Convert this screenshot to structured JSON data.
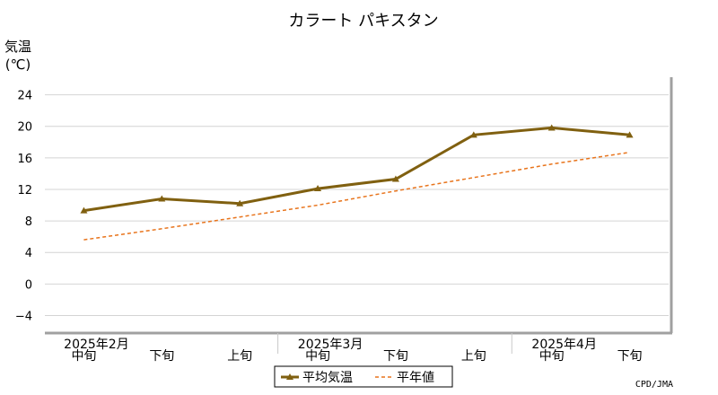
{
  "chart_data": {
    "type": "line",
    "title": "カラート パキスタン",
    "ylabel_line1": "気温",
    "ylabel_line2": "(℃)",
    "ylim": [
      -6,
      26
    ],
    "yticks": [
      -4,
      0,
      4,
      8,
      12,
      16,
      20,
      24
    ],
    "grid": true,
    "categories": [
      "中旬",
      "下旬",
      "上旬",
      "中旬",
      "下旬",
      "上旬",
      "中旬",
      "下旬"
    ],
    "month_labels": [
      {
        "label": "2025年2月",
        "at": 0
      },
      {
        "label": "2025年3月",
        "at": 3
      },
      {
        "label": "2025年4月",
        "at": 6
      }
    ],
    "series": [
      {
        "name": "平均気温",
        "style": "solid-triangle",
        "color": "#806010",
        "values": [
          9.3,
          10.8,
          10.2,
          12.1,
          13.3,
          18.9,
          19.8,
          18.9
        ]
      },
      {
        "name": "平年値",
        "style": "dashed",
        "color": "#e8741c",
        "values": [
          5.6,
          7.0,
          8.5,
          10.0,
          11.8,
          13.5,
          15.2,
          16.7
        ]
      }
    ],
    "legend_position": "bottom-center",
    "credit": "CPD/JMA"
  }
}
